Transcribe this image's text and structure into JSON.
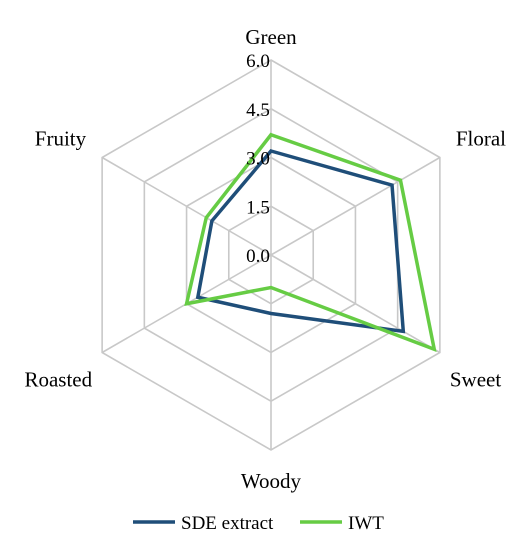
{
  "chart_data": {
    "type": "radar",
    "axes": [
      "Green",
      "Floral",
      "Sweet",
      "Woody",
      "Roasted",
      "Fruity"
    ],
    "rlim": [
      0,
      6
    ],
    "ticks": [
      "0.0",
      "1.5",
      "3.0",
      "4.5",
      "6.0"
    ],
    "tick_values": [
      0,
      1.5,
      3.0,
      4.5,
      6.0
    ],
    "grid": true,
    "legend_position": "bottom",
    "series": [
      {
        "name": "SDE extract",
        "color": "#1f4e79",
        "values": [
          3.2,
          4.3,
          4.7,
          1.8,
          2.6,
          2.1
        ]
      },
      {
        "name": "IWT",
        "color": "#66cc44",
        "values": [
          3.7,
          4.6,
          5.8,
          1.0,
          3.0,
          2.3
        ]
      }
    ]
  }
}
